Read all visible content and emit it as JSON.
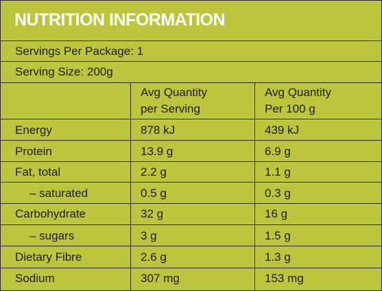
{
  "title": "NUTRITION INFORMATION",
  "servings_per_package": "Servings Per Package: 1",
  "serving_size": "Serving Size: 200g",
  "columns": {
    "col1_line1": "Avg Quantity",
    "col1_line2": "per Serving",
    "col2_line1": "Avg Quantity",
    "col2_line2": "Per 100 g"
  },
  "rows": [
    {
      "label": "Energy",
      "per_serving": "878 kJ",
      "per_100g": "439 kJ"
    },
    {
      "label": "Protein",
      "per_serving": "13.9 g",
      "per_100g": "6.9 g"
    },
    {
      "label": "Fat, total",
      "per_serving": "2.2 g",
      "per_100g": "1.1 g"
    },
    {
      "label": "– saturated",
      "per_serving": "0.5 g",
      "per_100g": "0.3 g"
    },
    {
      "label": "Carbohydrate",
      "per_serving": "32 g",
      "per_100g": "16 g"
    },
    {
      "label": "– sugars",
      "per_serving": "3 g",
      "per_100g": "1.5 g"
    },
    {
      "label": "Dietary Fibre",
      "per_serving": "2.6 g",
      "per_100g": "1.3 g"
    },
    {
      "label": "Sodium",
      "per_serving": "307 mg",
      "per_100g": "153 mg"
    }
  ],
  "colors": {
    "background": "#bcc63c",
    "title_text": "#ffffff",
    "rule": "#2c2c2c"
  }
}
